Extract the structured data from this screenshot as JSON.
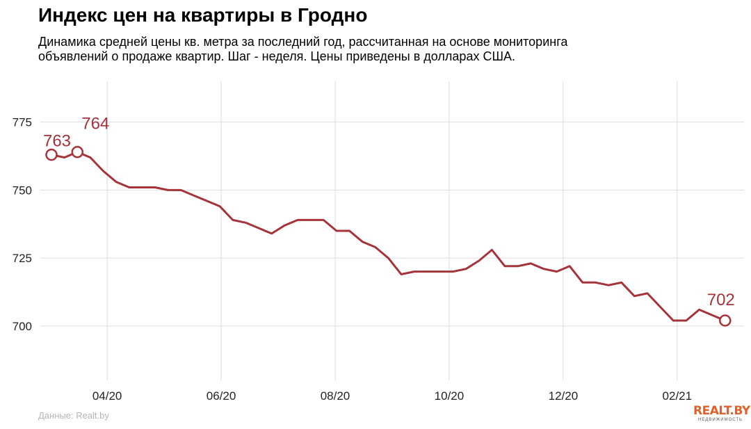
{
  "header": {
    "title": "Индекс цен на квартиры в Гродно",
    "subtitle_line1": "Динамика средней цены кв. метра за последний год, рассчитанная на основе мониторинга",
    "subtitle_line2": "объявлений о продаже квартир. Шаг - неделя. Цены приведены в долларах США."
  },
  "footer": {
    "source": "Данные: Realt.by",
    "logo_main": "REALT.BY",
    "logo_sub": "НЕДВИЖИМОСТЬ"
  },
  "colors": {
    "line": "#a4343a",
    "grid": "#dddddd",
    "axis_text": "#222222",
    "logo": "#e2602a"
  },
  "chart_data": {
    "type": "line",
    "title": "Индекс цен на квартиры в Гродно",
    "ylim": [
      680,
      790
    ],
    "yticks": [
      700,
      725,
      750,
      775
    ],
    "xtick_labels": [
      "04/20",
      "06/20",
      "08/20",
      "10/20",
      "12/20",
      "02/21"
    ],
    "xtick_positions": [
      4.3,
      13.1,
      21.9,
      30.7,
      39.5,
      48.3
    ],
    "grid": true,
    "series": [
      {
        "values": [
          763,
          762,
          764,
          762,
          757,
          753,
          751,
          751,
          751,
          750,
          750,
          748,
          746,
          744,
          739,
          738,
          736,
          734,
          737,
          739,
          739,
          739,
          735,
          735,
          731,
          729,
          725,
          719,
          720,
          720,
          720,
          720,
          721,
          724,
          728,
          722,
          722,
          723,
          721,
          720,
          722,
          716,
          716,
          715,
          716,
          711,
          712,
          707,
          702,
          702,
          706,
          704,
          702
        ]
      }
    ],
    "annotations": [
      {
        "index": 0,
        "label": "763"
      },
      {
        "index": 2,
        "label": "764"
      },
      {
        "index": 52,
        "label": "702"
      }
    ]
  }
}
